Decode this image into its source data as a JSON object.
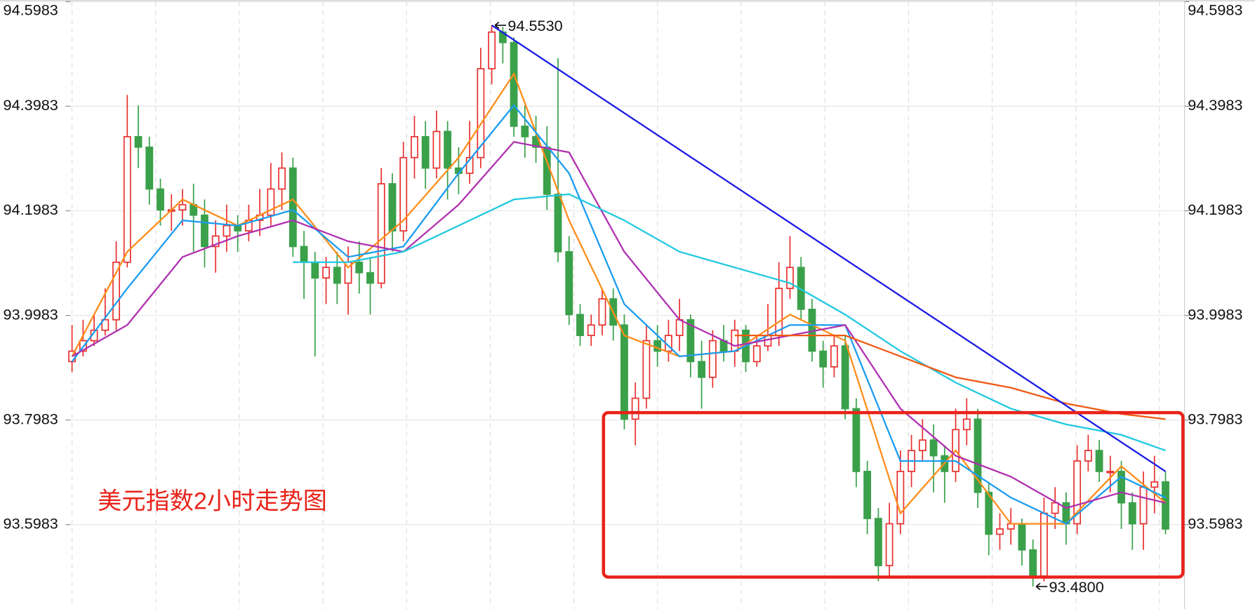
{
  "chart_data": {
    "type": "candlestick",
    "title": "美元指数2小时走势图",
    "up_color": "#e8312f",
    "down_color": "#3aa14a",
    "ylim": [
      93.437,
      94.5983
    ],
    "yticks": [
      93.5983,
      93.7983,
      93.9983,
      94.1983,
      94.3983,
      94.5983
    ],
    "grid": true,
    "candles": [
      [
        93.91,
        93.98,
        93.89,
        93.93
      ],
      [
        93.93,
        93.99,
        93.92,
        93.95
      ],
      [
        93.95,
        94.0,
        93.94,
        93.97
      ],
      [
        93.97,
        94.05,
        93.96,
        93.99
      ],
      [
        93.99,
        94.14,
        93.97,
        94.1
      ],
      [
        94.1,
        94.42,
        94.09,
        94.34
      ],
      [
        94.34,
        94.4,
        94.28,
        94.32
      ],
      [
        94.32,
        94.34,
        94.21,
        94.24
      ],
      [
        94.24,
        94.26,
        94.17,
        94.2
      ],
      [
        94.2,
        94.23,
        94.16,
        94.2
      ],
      [
        94.2,
        94.24,
        94.17,
        94.21
      ],
      [
        94.21,
        94.25,
        94.12,
        94.19
      ],
      [
        94.19,
        94.22,
        94.09,
        94.13
      ],
      [
        94.13,
        94.18,
        94.08,
        94.15
      ],
      [
        94.15,
        94.21,
        94.12,
        94.17
      ],
      [
        94.17,
        94.19,
        94.12,
        94.16
      ],
      [
        94.16,
        94.21,
        94.14,
        94.18
      ],
      [
        94.18,
        94.24,
        94.15,
        94.19
      ],
      [
        94.19,
        94.29,
        94.17,
        94.24
      ],
      [
        94.24,
        94.31,
        94.2,
        94.28
      ],
      [
        94.28,
        94.3,
        94.11,
        94.13
      ],
      [
        94.13,
        94.16,
        94.03,
        94.1
      ],
      [
        94.1,
        94.12,
        93.92,
        94.07
      ],
      [
        94.07,
        94.11,
        94.02,
        94.09
      ],
      [
        94.09,
        94.12,
        94.02,
        94.06
      ],
      [
        94.06,
        94.13,
        94.0,
        94.1
      ],
      [
        94.1,
        94.14,
        94.04,
        94.08
      ],
      [
        94.08,
        94.11,
        94.0,
        94.06
      ],
      [
        94.06,
        94.28,
        94.05,
        94.25
      ],
      [
        94.25,
        94.27,
        94.12,
        94.16
      ],
      [
        94.16,
        94.33,
        94.14,
        94.3
      ],
      [
        94.3,
        94.38,
        94.26,
        94.34
      ],
      [
        94.34,
        94.37,
        94.24,
        94.28
      ],
      [
        94.28,
        94.39,
        94.26,
        94.35
      ],
      [
        94.35,
        94.37,
        94.22,
        94.28
      ],
      [
        94.28,
        94.32,
        94.23,
        94.27
      ],
      [
        94.27,
        94.37,
        94.25,
        94.3
      ],
      [
        94.3,
        94.51,
        94.28,
        94.47
      ],
      [
        94.47,
        94.553,
        94.44,
        94.54
      ],
      [
        94.54,
        94.55,
        94.48,
        94.52
      ],
      [
        94.52,
        94.53,
        94.34,
        94.36
      ],
      [
        94.36,
        94.4,
        94.3,
        94.34
      ],
      [
        94.34,
        94.38,
        94.29,
        94.32
      ],
      [
        94.32,
        94.36,
        94.2,
        94.23
      ],
      [
        94.23,
        94.49,
        94.1,
        94.12
      ],
      [
        94.12,
        94.15,
        93.98,
        94.0
      ],
      [
        94.0,
        94.02,
        93.94,
        93.96
      ],
      [
        93.96,
        94.0,
        93.94,
        93.98
      ],
      [
        93.98,
        94.05,
        93.96,
        94.03
      ],
      [
        94.03,
        94.05,
        93.95,
        93.98
      ],
      [
        93.98,
        94.0,
        93.78,
        93.8
      ],
      [
        93.8,
        93.87,
        93.75,
        93.84
      ],
      [
        93.84,
        93.98,
        93.82,
        93.95
      ],
      [
        93.95,
        93.98,
        93.9,
        93.93
      ],
      [
        93.93,
        93.99,
        93.91,
        93.96
      ],
      [
        93.96,
        94.03,
        93.93,
        93.99
      ],
      [
        93.99,
        94.0,
        93.88,
        93.91
      ],
      [
        93.91,
        93.95,
        93.82,
        93.88
      ],
      [
        93.88,
        93.97,
        93.86,
        93.95
      ],
      [
        93.95,
        93.98,
        93.91,
        93.93
      ],
      [
        93.93,
        93.99,
        93.9,
        93.97
      ],
      [
        93.97,
        93.98,
        93.89,
        93.91
      ],
      [
        93.91,
        93.96,
        93.9,
        93.94
      ],
      [
        93.94,
        94.02,
        93.93,
        93.96
      ],
      [
        93.96,
        94.1,
        93.94,
        94.05
      ],
      [
        94.05,
        94.15,
        94.03,
        94.09
      ],
      [
        94.09,
        94.11,
        93.99,
        94.01
      ],
      [
        94.01,
        94.03,
        93.91,
        93.93
      ],
      [
        93.93,
        93.95,
        93.86,
        93.9
      ],
      [
        93.9,
        93.96,
        93.88,
        93.94
      ],
      [
        93.94,
        93.96,
        93.8,
        93.82
      ],
      [
        93.82,
        93.84,
        93.67,
        93.7
      ],
      [
        93.7,
        93.72,
        93.58,
        93.61
      ],
      [
        93.61,
        93.63,
        93.49,
        93.52
      ],
      [
        93.52,
        93.64,
        93.5,
        93.6
      ],
      [
        93.6,
        93.74,
        93.58,
        93.7
      ],
      [
        93.7,
        93.77,
        93.67,
        93.74
      ],
      [
        93.74,
        93.8,
        93.72,
        93.76
      ],
      [
        93.76,
        93.79,
        93.66,
        93.73
      ],
      [
        93.73,
        93.75,
        93.64,
        93.7
      ],
      [
        93.7,
        93.82,
        93.68,
        93.78
      ],
      [
        93.78,
        93.84,
        93.75,
        93.8
      ],
      [
        93.8,
        93.82,
        93.63,
        93.66
      ],
      [
        93.66,
        93.68,
        93.54,
        93.58
      ],
      [
        93.58,
        93.62,
        93.55,
        93.59
      ],
      [
        93.59,
        93.63,
        93.56,
        93.6
      ],
      [
        93.6,
        93.61,
        93.52,
        93.55
      ],
      [
        93.55,
        93.57,
        93.48,
        93.5
      ],
      [
        93.5,
        93.65,
        93.49,
        93.62
      ],
      [
        93.62,
        93.67,
        93.59,
        93.64
      ],
      [
        93.64,
        93.66,
        93.56,
        93.6
      ],
      [
        93.6,
        93.75,
        93.58,
        93.72
      ],
      [
        93.72,
        93.77,
        93.7,
        93.74
      ],
      [
        93.74,
        93.76,
        93.68,
        93.7
      ],
      [
        93.7,
        93.73,
        93.66,
        93.7
      ],
      [
        93.7,
        93.72,
        93.59,
        93.64
      ],
      [
        93.64,
        93.66,
        93.55,
        93.6
      ],
      [
        93.6,
        93.7,
        93.55,
        93.67
      ],
      [
        93.67,
        93.73,
        93.62,
        93.68
      ],
      [
        93.68,
        93.7,
        93.58,
        93.59
      ]
    ],
    "lines": [
      {
        "color": "#ff8c1a",
        "x": [
          0,
          5,
          10,
          15,
          20,
          25,
          30,
          35,
          40,
          45,
          50,
          55,
          60,
          65,
          70,
          75,
          80,
          85,
          90,
          95,
          99
        ],
        "values": [
          93.92,
          94.12,
          94.22,
          94.17,
          94.22,
          94.09,
          94.18,
          94.3,
          94.46,
          94.18,
          93.96,
          93.92,
          93.93,
          94.0,
          93.95,
          93.62,
          93.74,
          93.6,
          93.6,
          93.71,
          93.64
        ]
      },
      {
        "color": "#1a9cf0",
        "x": [
          0,
          5,
          10,
          15,
          20,
          25,
          30,
          35,
          40,
          45,
          50,
          55,
          60,
          65,
          70,
          75,
          80,
          85,
          90,
          95,
          99
        ],
        "values": [
          93.91,
          94.05,
          94.18,
          94.17,
          94.2,
          94.11,
          94.13,
          94.27,
          94.4,
          94.27,
          94.02,
          93.92,
          93.93,
          93.98,
          93.98,
          93.72,
          93.72,
          93.65,
          93.6,
          93.69,
          93.65
        ]
      },
      {
        "color": "#b030b0",
        "x": [
          0,
          5,
          10,
          15,
          20,
          25,
          30,
          35,
          40,
          45,
          50,
          55,
          60,
          65,
          70,
          75,
          80,
          85,
          90,
          95,
          99
        ],
        "values": [
          93.92,
          93.98,
          94.11,
          94.15,
          94.18,
          94.14,
          94.12,
          94.21,
          94.33,
          94.31,
          94.12,
          93.99,
          93.94,
          93.96,
          93.98,
          93.82,
          93.73,
          93.69,
          93.63,
          93.66,
          93.64
        ]
      },
      {
        "color": "#20c8e0",
        "x": [
          0,
          5,
          10,
          15,
          20,
          25,
          30,
          35,
          40,
          45,
          50,
          55,
          60,
          65,
          70,
          75,
          80,
          85,
          90,
          95,
          99
        ],
        "values": [
          null,
          null,
          null,
          null,
          94.1,
          94.1,
          94.12,
          94.17,
          94.22,
          94.23,
          94.18,
          94.12,
          94.09,
          94.06,
          94.0,
          93.93,
          93.87,
          93.82,
          93.79,
          93.77,
          93.74
        ]
      },
      {
        "color": "#f05a14",
        "x": [
          0,
          5,
          10,
          15,
          20,
          25,
          30,
          35,
          40,
          45,
          50,
          55,
          60,
          65,
          70,
          75,
          80,
          85,
          90,
          95,
          99
        ],
        "values": [
          null,
          null,
          null,
          null,
          null,
          null,
          null,
          null,
          null,
          null,
          null,
          null,
          93.96,
          93.96,
          93.96,
          93.92,
          93.88,
          93.86,
          93.83,
          93.81,
          93.8
        ]
      }
    ],
    "trendline": {
      "color": "#1a1ae6",
      "x": [
        38,
        99
      ],
      "y": [
        94.553,
        93.7
      ]
    },
    "annotations": [
      {
        "x": 38,
        "y": {
          "value": 94.553,
          "label": "94.5530"
        },
        "side": "right"
      },
      {
        "x": 87,
        "y": {
          "value": 93.48,
          "label": "93.4800"
        },
        "side": "right"
      }
    ]
  }
}
